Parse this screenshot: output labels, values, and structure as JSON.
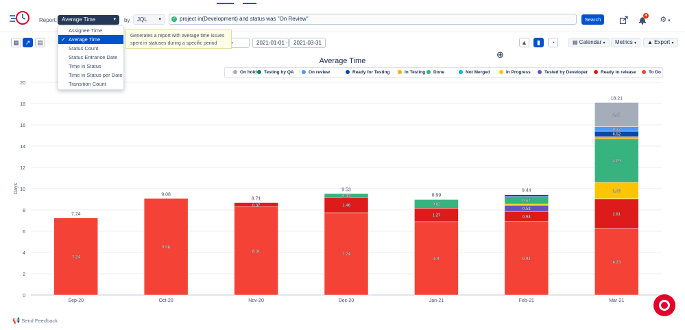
{
  "header": {
    "report_label": "Report:",
    "report_selected": "Average Time",
    "by_label": "by",
    "by_selected": "JQL",
    "jql_query": "project in(Development) and status  was \"On Review\"",
    "search_label": "Search"
  },
  "notifications_count": "4",
  "report_menu": {
    "items": [
      "Assignee Time",
      "Average Time",
      "Status Count",
      "Status Entrance Date",
      "Time in Status",
      "Time in Status per Date",
      "Transition Count"
    ],
    "selected_index": 1
  },
  "tooltip": {
    "line1": "Generates a report with average time issues",
    "line2": "spent in statuses during a specific period"
  },
  "toolbar": {
    "date_from": "2021-01-01",
    "date_sep": "-",
    "date_to": "2021-03-31",
    "calendar_label": "Calendar",
    "metrics_label": "Metrics",
    "export_label": "Export"
  },
  "feedback_label": "Send Feedback",
  "chart_data": {
    "type": "bar",
    "stacked": true,
    "title": "Average Time",
    "xlabel": "",
    "ylabel": "Days",
    "ylim": [
      0,
      20
    ],
    "yticks": [
      0,
      2,
      4,
      6,
      8,
      10,
      12,
      14,
      16,
      18,
      20
    ],
    "grid": true,
    "legend_position": "top-right",
    "categories": [
      "Sep-20",
      "Oct-20",
      "Nov-20",
      "Dec-20",
      "Jan-21",
      "Feb-21",
      "Mar-21"
    ],
    "totals": [
      "7.24",
      "9.08",
      "8.71",
      "9.53",
      "8.99",
      "9.44",
      "18.21"
    ],
    "legend": [
      {
        "name": "On hold",
        "color": "#a5adba"
      },
      {
        "name": "Testing by QA",
        "color": "#00875a"
      },
      {
        "name": "On review",
        "color": "#4c9aff"
      },
      {
        "name": "Ready for Testing",
        "color": "#0747a6"
      },
      {
        "name": "In Testing",
        "color": "#ffab00"
      },
      {
        "name": "Done",
        "color": "#36b37e"
      },
      {
        "name": "Not Merged",
        "color": "#00b8d9"
      },
      {
        "name": "In Progress",
        "color": "#ffc400"
      },
      {
        "name": "Tested by Developer",
        "color": "#6554c0"
      },
      {
        "name": "Ready to release",
        "color": "#de1b1b"
      },
      {
        "name": "To Do",
        "color": "#f44336"
      }
    ],
    "series": [
      {
        "name": "To Do",
        "color": "#f44336",
        "values": [
          7.24,
          9.08,
          8.31,
          7.74,
          6.9,
          6.92,
          6.23
        ],
        "labels": [
          "7.24",
          "9.08",
          "8.31",
          "7.74",
          "6.9",
          "6.92",
          "6.23"
        ]
      },
      {
        "name": "Ready to release",
        "color": "#de1b1b",
        "values": [
          0,
          0,
          0.37,
          1.46,
          1.27,
          0.94,
          2.81
        ],
        "labels": [
          "",
          "",
          "0.37",
          "1.46",
          "1.27",
          "0.94",
          "2.81"
        ]
      },
      {
        "name": "Tested by Developer",
        "color": "#6554c0",
        "values": [
          0,
          0,
          0,
          0,
          0,
          0.58,
          0
        ],
        "labels": [
          "",
          "",
          "",
          "",
          "",
          "0.58",
          ""
        ]
      },
      {
        "name": "In Progress",
        "color": "#ffc400",
        "values": [
          0,
          0,
          0,
          0,
          0,
          0.13,
          1.56
        ],
        "labels": [
          "",
          "",
          "",
          "",
          "",
          "",
          "1.56"
        ]
      },
      {
        "name": "Done",
        "color": "#36b37e",
        "values": [
          0,
          0,
          0,
          0.33,
          0.82,
          0.67,
          4.09
        ],
        "labels": [
          "",
          "",
          "",
          "0.33",
          "0.82",
          "0.67",
          "4.09"
        ]
      },
      {
        "name": "In Testing",
        "color": "#ffab00",
        "values": [
          0,
          0,
          0,
          0,
          0,
          0,
          0.2
        ],
        "labels": [
          "",
          "",
          "",
          "",
          "",
          "",
          ""
        ]
      },
      {
        "name": "Ready for Testing",
        "color": "#0747a6",
        "values": [
          0,
          0,
          0,
          0,
          0,
          0.2,
          0.52
        ],
        "labels": [
          "",
          "",
          "",
          "",
          "",
          "",
          "0.52"
        ]
      },
      {
        "name": "On review",
        "color": "#4c9aff",
        "values": [
          0,
          0,
          0,
          0,
          0,
          0,
          0.42
        ],
        "labels": [
          "",
          "",
          "",
          "",
          "",
          "",
          "0.42"
        ]
      },
      {
        "name": "On hold",
        "color": "#a5adba",
        "values": [
          0,
          0,
          0,
          0,
          0,
          0,
          2.27
        ],
        "labels": [
          "",
          "",
          "",
          "",
          "",
          "",
          "2.27"
        ]
      }
    ]
  }
}
